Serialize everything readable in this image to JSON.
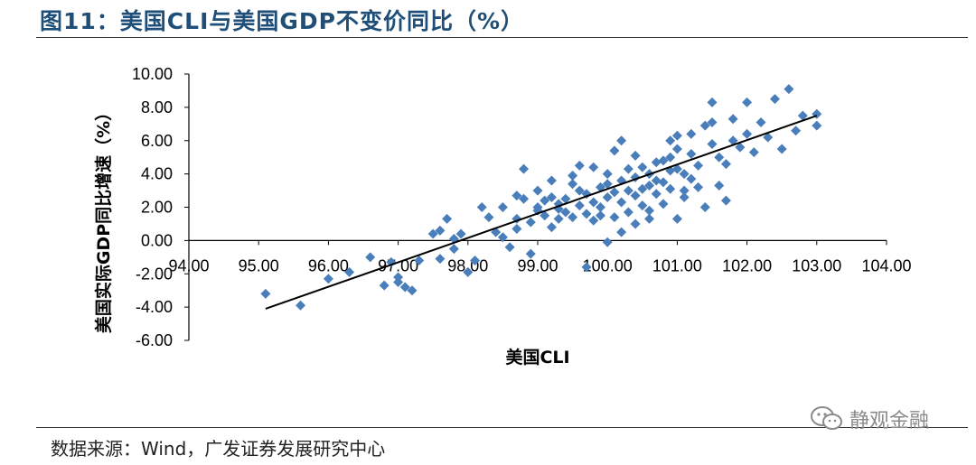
{
  "title": "图11：美国CLI与美国GDP不变价同比（%）",
  "source": "数据来源：Wind，广发证券发展研究中心",
  "watermark": "静观金融",
  "colors": {
    "marker": "#4a7ebb",
    "trend": "#000000",
    "title": "#1f4e79"
  },
  "chart_data": {
    "type": "scatter",
    "title": "图11：美国CLI与美国GDP不变价同比（%）",
    "xlabel": "美国CLI",
    "ylabel": "美国实际GDP同比增速（%）",
    "xlim": [
      94,
      104
    ],
    "ylim": [
      -6,
      10
    ],
    "x_ticks": [
      "94.00",
      "95.00",
      "96.00",
      "97.00",
      "98.00",
      "99.00",
      "100.00",
      "101.00",
      "102.00",
      "103.00",
      "104.00"
    ],
    "y_ticks": [
      "10.00",
      "8.00",
      "6.00",
      "4.00",
      "2.00",
      "0.00",
      "-2.00",
      "-4.00",
      "-6.00"
    ],
    "grid": false,
    "marker": "diamond",
    "trendline": {
      "from": [
        95.1,
        -4.1
      ],
      "to": [
        103.0,
        7.5
      ]
    },
    "points": [
      [
        95.1,
        -3.2
      ],
      [
        95.6,
        -3.9
      ],
      [
        96.0,
        -2.3
      ],
      [
        96.3,
        -1.9
      ],
      [
        96.6,
        -1.0
      ],
      [
        96.8,
        -2.7
      ],
      [
        96.9,
        -1.3
      ],
      [
        97.0,
        -2.5
      ],
      [
        97.0,
        -2.2
      ],
      [
        97.1,
        -2.8
      ],
      [
        97.2,
        -3.0
      ],
      [
        97.3,
        -1.2
      ],
      [
        97.5,
        0.4
      ],
      [
        97.6,
        0.6
      ],
      [
        97.6,
        -1.1
      ],
      [
        97.7,
        1.3
      ],
      [
        97.8,
        -0.5
      ],
      [
        97.8,
        0.1
      ],
      [
        97.9,
        0.4
      ],
      [
        98.0,
        -1.9
      ],
      [
        98.1,
        -1.2
      ],
      [
        98.2,
        2.0
      ],
      [
        98.3,
        1.4
      ],
      [
        98.4,
        0.5
      ],
      [
        98.5,
        2.0
      ],
      [
        98.5,
        0.2
      ],
      [
        98.6,
        -0.4
      ],
      [
        98.7,
        0.7
      ],
      [
        98.7,
        1.3
      ],
      [
        98.8,
        4.3
      ],
      [
        98.8,
        2.5
      ],
      [
        98.9,
        1.1
      ],
      [
        98.9,
        -0.8
      ],
      [
        99.0,
        3.0
      ],
      [
        99.0,
        1.8
      ],
      [
        99.1,
        2.4
      ],
      [
        99.2,
        0.8
      ],
      [
        99.2,
        2.6
      ],
      [
        99.3,
        1.9
      ],
      [
        99.3,
        1.3
      ],
      [
        99.4,
        2.5
      ],
      [
        99.5,
        1.4
      ],
      [
        99.5,
        3.4
      ],
      [
        99.6,
        4.5
      ],
      [
        99.6,
        2.1
      ],
      [
        99.7,
        1.6
      ],
      [
        99.7,
        -1.6
      ],
      [
        99.8,
        1.2
      ],
      [
        99.8,
        2.3
      ],
      [
        99.9,
        3.2
      ],
      [
        99.9,
        1.5
      ],
      [
        100.0,
        4.0
      ],
      [
        100.0,
        -0.1
      ],
      [
        100.1,
        2.9
      ],
      [
        100.1,
        1.4
      ],
      [
        100.2,
        6.0
      ],
      [
        100.2,
        2.3
      ],
      [
        100.3,
        3.0
      ],
      [
        100.3,
        1.7
      ],
      [
        100.4,
        2.7
      ],
      [
        100.4,
        3.8
      ],
      [
        100.5,
        2.1
      ],
      [
        100.5,
        4.4
      ],
      [
        100.6,
        3.3
      ],
      [
        100.6,
        1.8
      ],
      [
        100.7,
        2.8
      ],
      [
        100.7,
        4.7
      ],
      [
        100.8,
        3.5
      ],
      [
        100.8,
        2.2
      ],
      [
        100.9,
        4.2
      ],
      [
        100.9,
        3.1
      ],
      [
        101.0,
        5.5
      ],
      [
        101.0,
        6.3
      ],
      [
        101.0,
        1.3
      ],
      [
        101.1,
        2.6
      ],
      [
        101.1,
        4.0
      ],
      [
        101.2,
        5.2
      ],
      [
        101.2,
        3.7
      ],
      [
        101.3,
        3.2
      ],
      [
        101.3,
        4.5
      ],
      [
        101.4,
        6.9
      ],
      [
        101.4,
        2.0
      ],
      [
        101.5,
        5.8
      ],
      [
        101.5,
        7.1
      ],
      [
        101.6,
        3.3
      ],
      [
        101.6,
        5.0
      ],
      [
        101.7,
        4.6
      ],
      [
        101.7,
        2.4
      ],
      [
        101.8,
        6.0
      ],
      [
        101.8,
        7.3
      ],
      [
        101.9,
        5.6
      ],
      [
        102.0,
        6.4
      ],
      [
        102.0,
        8.3
      ],
      [
        102.1,
        5.3
      ],
      [
        102.2,
        7.1
      ],
      [
        102.3,
        6.2
      ],
      [
        102.4,
        8.5
      ],
      [
        102.5,
        5.5
      ],
      [
        102.6,
        9.1
      ],
      [
        102.7,
        6.6
      ],
      [
        102.8,
        7.5
      ],
      [
        103.0,
        6.9
      ],
      [
        103.0,
        7.6
      ],
      [
        101.5,
        8.3
      ],
      [
        101.2,
        6.4
      ],
      [
        100.9,
        6.0
      ],
      [
        100.4,
        5.1
      ],
      [
        100.1,
        5.4
      ],
      [
        99.8,
        4.4
      ],
      [
        99.5,
        3.9
      ],
      [
        99.2,
        3.6
      ],
      [
        99.0,
        2.0
      ],
      [
        98.7,
        2.7
      ],
      [
        100.0,
        3.4
      ],
      [
        100.2,
        3.6
      ],
      [
        100.3,
        4.3
      ],
      [
        100.5,
        3.1
      ],
      [
        100.6,
        4.0
      ],
      [
        100.7,
        3.6
      ],
      [
        100.8,
        4.8
      ],
      [
        100.9,
        5.0
      ],
      [
        101.0,
        4.3
      ],
      [
        101.1,
        3.0
      ],
      [
        100.6,
        1.3
      ],
      [
        100.4,
        1.0
      ],
      [
        100.2,
        0.5
      ],
      [
        100.0,
        2.6
      ],
      [
        99.9,
        2.0
      ],
      [
        99.7,
        2.8
      ],
      [
        99.6,
        3.0
      ],
      [
        99.4,
        1.7
      ],
      [
        99.3,
        2.2
      ],
      [
        99.1,
        1.5
      ]
    ]
  }
}
